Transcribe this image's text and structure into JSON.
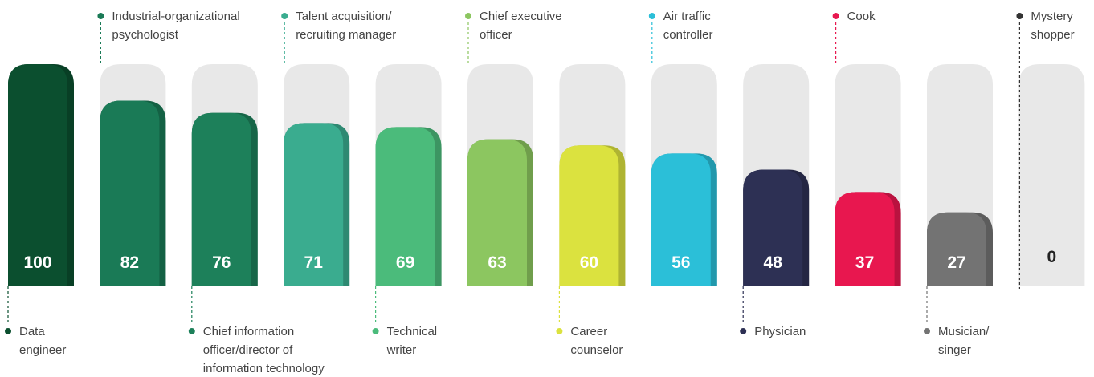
{
  "chart_data": {
    "type": "bar",
    "categories": [
      "Data\nengineer",
      "Industrial-organizational\npsychologist",
      "Chief information\nofficer/director of\ninformation technology",
      "Talent acquisition/\nrecruiting manager",
      "Technical\nwriter",
      "Chief executive\nofficer",
      "Career\ncounselor",
      "Air traffic\ncontroller",
      "Physician",
      "Cook",
      "Musician/\nsinger",
      "Mystery\nshopper"
    ],
    "values": [
      100,
      82,
      76,
      71,
      69,
      63,
      60,
      56,
      48,
      37,
      27,
      0
    ],
    "colors": [
      "#0b4f2f",
      "#1a7a56",
      "#1d805a",
      "#3aac8f",
      "#4bbb7b",
      "#8cc660",
      "#dbe23f",
      "#2bbfd8",
      "#2d3054",
      "#e8174f",
      "#737373",
      "#333333"
    ],
    "ylim": [
      0,
      100
    ]
  }
}
